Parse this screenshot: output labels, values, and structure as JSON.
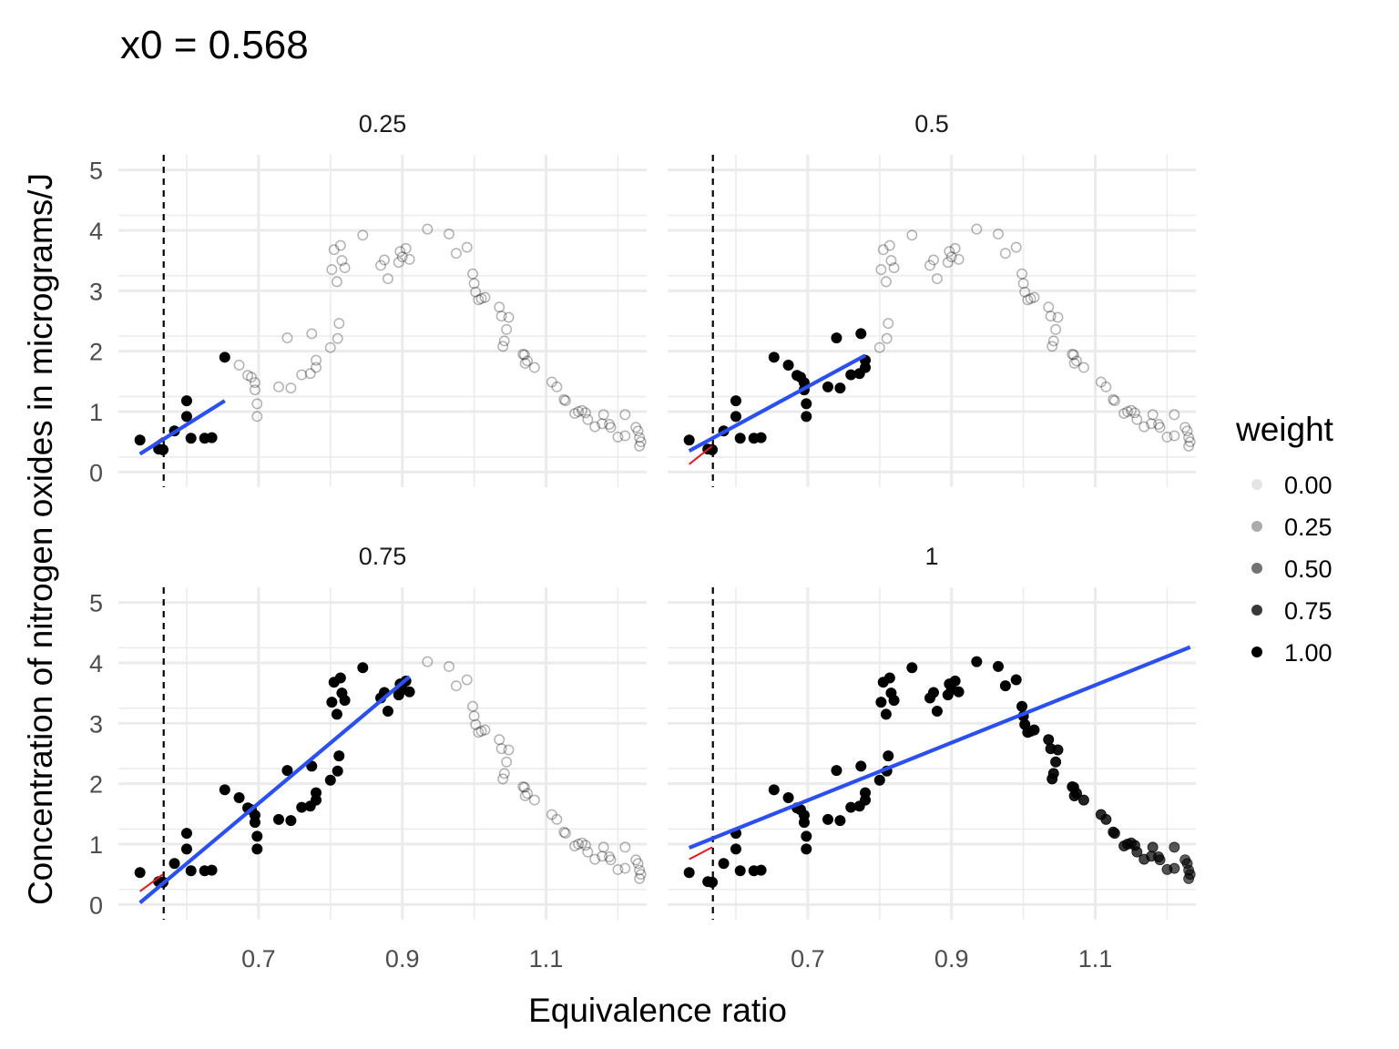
{
  "chart_data": {
    "type": "scatter",
    "title": "x0 =  0.568",
    "xlabel": "Equivalence ratio",
    "ylabel": "Concentration of nitrogen oxides in micrograms/J",
    "xlim": [
      0.505,
      1.24
    ],
    "ylim": [
      -0.25,
      5.25
    ],
    "x_ticks": [
      0.7,
      0.9,
      1.1
    ],
    "x_tick_labels": [
      "0.7",
      "0.9",
      "1.1"
    ],
    "x_minor_ticks": [
      0.6,
      0.8,
      1.0,
      1.2
    ],
    "y_ticks": [
      0,
      1,
      2,
      3,
      4,
      5
    ],
    "y_tick_labels": [
      "0",
      "1",
      "2",
      "3",
      "4",
      "5"
    ],
    "grid": true,
    "vline_x0": 0.568,
    "legend": {
      "title": "weight",
      "placement": "right",
      "entries": [
        {
          "label": "0.00",
          "value": 0.0
        },
        {
          "label": "0.25",
          "value": 0.25
        },
        {
          "label": "0.50",
          "value": 0.5
        },
        {
          "label": "0.75",
          "value": 0.75
        },
        {
          "label": "1.00",
          "value": 1.0
        }
      ]
    },
    "colors": {
      "point": "#000000",
      "fit_line": "#2b50f0",
      "local_line": "#e41a1c",
      "x0_line": "#000000",
      "grid": "#ebebeb"
    },
    "points": [
      {
        "x": 0.535,
        "y": 0.53
      },
      {
        "x": 0.561,
        "y": 0.38
      },
      {
        "x": 0.567,
        "y": 0.37
      },
      {
        "x": 0.567,
        "y": 0.37
      },
      {
        "x": 0.583,
        "y": 0.68
      },
      {
        "x": 0.6,
        "y": 1.18
      },
      {
        "x": 0.6,
        "y": 0.92
      },
      {
        "x": 0.606,
        "y": 0.56
      },
      {
        "x": 0.625,
        "y": 0.56
      },
      {
        "x": 0.635,
        "y": 0.57
      },
      {
        "x": 0.653,
        "y": 1.9
      },
      {
        "x": 0.673,
        "y": 1.77
      },
      {
        "x": 0.685,
        "y": 1.6
      },
      {
        "x": 0.69,
        "y": 1.57
      },
      {
        "x": 0.695,
        "y": 1.48
      },
      {
        "x": 0.695,
        "y": 1.36
      },
      {
        "x": 0.698,
        "y": 1.13
      },
      {
        "x": 0.698,
        "y": 0.92
      },
      {
        "x": 0.728,
        "y": 1.41
      },
      {
        "x": 0.74,
        "y": 2.22
      },
      {
        "x": 0.745,
        "y": 1.39
      },
      {
        "x": 0.76,
        "y": 1.61
      },
      {
        "x": 0.772,
        "y": 1.63
      },
      {
        "x": 0.774,
        "y": 2.29
      },
      {
        "x": 0.78,
        "y": 1.73
      },
      {
        "x": 0.78,
        "y": 1.85
      },
      {
        "x": 0.8,
        "y": 2.06
      },
      {
        "x": 0.802,
        "y": 3.35
      },
      {
        "x": 0.805,
        "y": 3.68
      },
      {
        "x": 0.809,
        "y": 3.15
      },
      {
        "x": 0.81,
        "y": 2.21
      },
      {
        "x": 0.812,
        "y": 2.46
      },
      {
        "x": 0.814,
        "y": 3.75
      },
      {
        "x": 0.816,
        "y": 3.5
      },
      {
        "x": 0.82,
        "y": 3.38
      },
      {
        "x": 0.845,
        "y": 3.92
      },
      {
        "x": 0.87,
        "y": 3.42
      },
      {
        "x": 0.875,
        "y": 3.51
      },
      {
        "x": 0.88,
        "y": 3.2
      },
      {
        "x": 0.895,
        "y": 3.47
      },
      {
        "x": 0.897,
        "y": 3.65
      },
      {
        "x": 0.9,
        "y": 3.56
      },
      {
        "x": 0.905,
        "y": 3.7
      },
      {
        "x": 0.91,
        "y": 3.52
      },
      {
        "x": 0.935,
        "y": 4.02
      },
      {
        "x": 0.965,
        "y": 3.94
      },
      {
        "x": 0.975,
        "y": 3.62
      },
      {
        "x": 0.99,
        "y": 3.72
      },
      {
        "x": 0.998,
        "y": 3.28
      },
      {
        "x": 1.0,
        "y": 3.12
      },
      {
        "x": 1.002,
        "y": 2.98
      },
      {
        "x": 1.006,
        "y": 2.85
      },
      {
        "x": 1.01,
        "y": 2.87
      },
      {
        "x": 1.015,
        "y": 2.89
      },
      {
        "x": 1.035,
        "y": 2.73
      },
      {
        "x": 1.038,
        "y": 2.58
      },
      {
        "x": 1.04,
        "y": 2.08
      },
      {
        "x": 1.042,
        "y": 2.17
      },
      {
        "x": 1.045,
        "y": 2.36
      },
      {
        "x": 1.048,
        "y": 2.56
      },
      {
        "x": 1.068,
        "y": 1.95
      },
      {
        "x": 1.07,
        "y": 1.94
      },
      {
        "x": 1.071,
        "y": 1.8
      },
      {
        "x": 1.074,
        "y": 1.84
      },
      {
        "x": 1.084,
        "y": 1.73
      },
      {
        "x": 1.108,
        "y": 1.49
      },
      {
        "x": 1.115,
        "y": 1.41
      },
      {
        "x": 1.125,
        "y": 1.2
      },
      {
        "x": 1.127,
        "y": 1.18
      },
      {
        "x": 1.14,
        "y": 0.97
      },
      {
        "x": 1.145,
        "y": 1.0
      },
      {
        "x": 1.15,
        "y": 1.02
      },
      {
        "x": 1.155,
        "y": 0.98
      },
      {
        "x": 1.158,
        "y": 0.87
      },
      {
        "x": 1.168,
        "y": 0.75
      },
      {
        "x": 1.178,
        "y": 0.8
      },
      {
        "x": 1.18,
        "y": 0.95
      },
      {
        "x": 1.188,
        "y": 0.79
      },
      {
        "x": 1.19,
        "y": 0.74
      },
      {
        "x": 1.2,
        "y": 0.58
      },
      {
        "x": 1.21,
        "y": 0.95
      },
      {
        "x": 1.21,
        "y": 0.6
      },
      {
        "x": 1.225,
        "y": 0.74
      },
      {
        "x": 1.228,
        "y": 0.68
      },
      {
        "x": 1.23,
        "y": 0.57
      },
      {
        "x": 1.23,
        "y": 0.43
      },
      {
        "x": 1.232,
        "y": 0.5
      }
    ],
    "panels": [
      {
        "label": "0.25",
        "span": 0.25,
        "weight_window": [
          0.535,
          0.653
        ],
        "fit_line": {
          "x": [
            0.535,
            0.653
          ],
          "y": [
            0.3,
            1.18
          ]
        },
        "local_line": {
          "x": [
            0.535,
            0.567
          ],
          "y": [
            0.3,
            0.57
          ]
        }
      },
      {
        "label": "0.5",
        "span": 0.5,
        "weight_window": [
          0.535,
          0.78
        ],
        "fit_line": {
          "x": [
            0.535,
            0.78
          ],
          "y": [
            0.35,
            1.93
          ]
        },
        "local_line": {
          "x": [
            0.535,
            0.567
          ],
          "y": [
            0.13,
            0.43
          ]
        }
      },
      {
        "label": "0.75",
        "span": 0.75,
        "weight_window": [
          0.535,
          0.91
        ],
        "fit_line": {
          "x": [
            0.535,
            0.91
          ],
          "y": [
            0.03,
            3.77
          ]
        },
        "local_line": {
          "x": [
            0.535,
            0.567
          ],
          "y": [
            0.22,
            0.5
          ]
        }
      },
      {
        "label": "1",
        "span": 1,
        "weight_window": [
          0.535,
          1.232
        ],
        "fit_line": {
          "x": [
            0.535,
            1.232
          ],
          "y": [
            0.94,
            4.26
          ]
        },
        "local_line": {
          "x": [
            0.535,
            0.567
          ],
          "y": [
            0.75,
            0.95
          ]
        }
      }
    ]
  }
}
